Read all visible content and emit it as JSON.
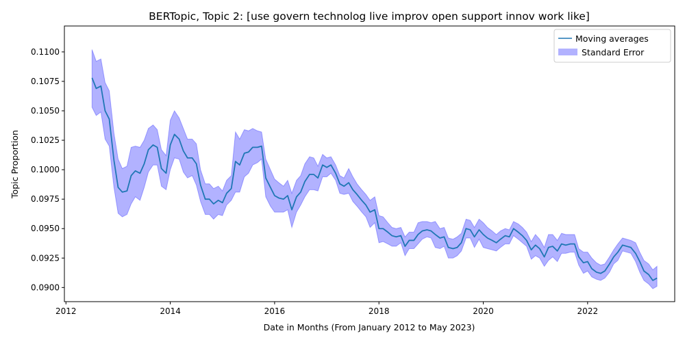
{
  "chart_data": {
    "type": "line",
    "title": "BERTopic, Topic 2: [use govern technolog live improv open support innov work like]",
    "xlabel": "Date in Months (From January 2012 to May 2023)",
    "ylabel": "Topic Proportion",
    "x_ticks": [
      "2012",
      "2014",
      "2016",
      "2018",
      "2020",
      "2022"
    ],
    "y_ticks": [
      "0.0900",
      "0.0925",
      "0.0950",
      "0.0975",
      "0.1000",
      "0.1025",
      "0.1050",
      "0.1075",
      "0.1100"
    ],
    "xlim": [
      2011.97,
      2023.67
    ],
    "ylim": [
      0.0888,
      0.1122
    ],
    "legend_position": "top-right",
    "colors": {
      "line": "#1f77b4",
      "band": "#0000ff"
    },
    "series": [
      {
        "name": "Moving averages",
        "x": [
          2012.5,
          2012.58,
          2012.67,
          2012.75,
          2012.83,
          2012.92,
          2013.0,
          2013.08,
          2013.17,
          2013.25,
          2013.33,
          2013.42,
          2013.5,
          2013.58,
          2013.67,
          2013.75,
          2013.83,
          2013.92,
          2014.0,
          2014.08,
          2014.17,
          2014.25,
          2014.33,
          2014.42,
          2014.5,
          2014.58,
          2014.67,
          2014.75,
          2014.83,
          2014.92,
          2015.0,
          2015.08,
          2015.17,
          2015.25,
          2015.33,
          2015.42,
          2015.5,
          2015.58,
          2015.67,
          2015.75,
          2015.83,
          2015.92,
          2016.0,
          2016.08,
          2016.17,
          2016.25,
          2016.33,
          2016.42,
          2016.5,
          2016.58,
          2016.67,
          2016.75,
          2016.83,
          2016.92,
          2017.0,
          2017.08,
          2017.17,
          2017.25,
          2017.33,
          2017.42,
          2017.5,
          2017.58,
          2017.67,
          2017.75,
          2017.83,
          2017.92,
          2018.0,
          2018.08,
          2018.17,
          2018.25,
          2018.33,
          2018.42,
          2018.5,
          2018.58,
          2018.67,
          2018.75,
          2018.83,
          2018.92,
          2019.0,
          2019.08,
          2019.17,
          2019.25,
          2019.33,
          2019.42,
          2019.5,
          2019.58,
          2019.67,
          2019.75,
          2019.83,
          2019.92,
          2020.0,
          2020.08,
          2020.17,
          2020.25,
          2020.33,
          2020.42,
          2020.5,
          2020.58,
          2020.67,
          2020.75,
          2020.83,
          2020.92,
          2021.0,
          2021.08,
          2021.17,
          2021.25,
          2021.33,
          2021.42,
          2021.5,
          2021.58,
          2021.67,
          2021.75,
          2021.83,
          2021.92,
          2022.0,
          2022.08,
          2022.17,
          2022.25,
          2022.33,
          2022.42,
          2022.5,
          2022.58,
          2022.67,
          2022.75,
          2022.83,
          2022.92,
          2023.0,
          2023.08,
          2023.17,
          2023.25,
          2023.33
        ],
        "values": [
          0.1078,
          0.1069,
          0.1071,
          0.105,
          0.1043,
          0.1008,
          0.0985,
          0.0981,
          0.0982,
          0.0995,
          0.0999,
          0.0997,
          0.1005,
          0.1017,
          0.1021,
          0.1019,
          0.1001,
          0.0997,
          0.1021,
          0.103,
          0.1026,
          0.1016,
          0.101,
          0.101,
          0.1005,
          0.0987,
          0.0975,
          0.0975,
          0.0971,
          0.0974,
          0.0972,
          0.098,
          0.0984,
          0.1007,
          0.1004,
          0.1014,
          0.1015,
          0.1019,
          0.1019,
          0.102,
          0.0993,
          0.0985,
          0.0978,
          0.0976,
          0.0975,
          0.0978,
          0.0966,
          0.0977,
          0.0981,
          0.099,
          0.0996,
          0.0996,
          0.0993,
          0.1004,
          0.1002,
          0.1004,
          0.0997,
          0.0988,
          0.0986,
          0.0989,
          0.0983,
          0.0979,
          0.0974,
          0.097,
          0.0964,
          0.0966,
          0.095,
          0.095,
          0.0947,
          0.0944,
          0.0943,
          0.0944,
          0.0935,
          0.094,
          0.094,
          0.0945,
          0.0948,
          0.0949,
          0.0948,
          0.0945,
          0.0942,
          0.0943,
          0.0934,
          0.0933,
          0.0934,
          0.0938,
          0.095,
          0.0949,
          0.0943,
          0.0949,
          0.0945,
          0.0942,
          0.094,
          0.0938,
          0.0941,
          0.0944,
          0.0943,
          0.095,
          0.0947,
          0.0944,
          0.094,
          0.0932,
          0.0936,
          0.0933,
          0.0926,
          0.0934,
          0.0935,
          0.0931,
          0.0937,
          0.0936,
          0.0937,
          0.0937,
          0.0926,
          0.0921,
          0.0922,
          0.0916,
          0.0913,
          0.0912,
          0.0914,
          0.092,
          0.0926,
          0.093,
          0.0936,
          0.0935,
          0.0934,
          0.0929,
          0.0922,
          0.0914,
          0.0911,
          0.0906,
          0.0908
        ]
      },
      {
        "name": "Standard Error",
        "x": [
          2012.5,
          2012.58,
          2012.67,
          2012.75,
          2012.83,
          2012.92,
          2013.0,
          2013.08,
          2013.17,
          2013.25,
          2013.33,
          2013.42,
          2013.5,
          2013.58,
          2013.67,
          2013.75,
          2013.83,
          2013.92,
          2014.0,
          2014.08,
          2014.17,
          2014.25,
          2014.33,
          2014.42,
          2014.5,
          2014.58,
          2014.67,
          2014.75,
          2014.83,
          2014.92,
          2015.0,
          2015.08,
          2015.17,
          2015.25,
          2015.33,
          2015.42,
          2015.5,
          2015.58,
          2015.67,
          2015.75,
          2015.83,
          2015.92,
          2016.0,
          2016.08,
          2016.17,
          2016.25,
          2016.33,
          2016.42,
          2016.5,
          2016.58,
          2016.67,
          2016.75,
          2016.83,
          2016.92,
          2017.0,
          2017.08,
          2017.17,
          2017.25,
          2017.33,
          2017.42,
          2017.5,
          2017.58,
          2017.67,
          2017.75,
          2017.83,
          2017.92,
          2018.0,
          2018.08,
          2018.17,
          2018.25,
          2018.33,
          2018.42,
          2018.5,
          2018.58,
          2018.67,
          2018.75,
          2018.83,
          2018.92,
          2019.0,
          2019.08,
          2019.17,
          2019.25,
          2019.33,
          2019.42,
          2019.5,
          2019.58,
          2019.67,
          2019.75,
          2019.83,
          2019.92,
          2020.0,
          2020.08,
          2020.17,
          2020.25,
          2020.33,
          2020.42,
          2020.5,
          2020.58,
          2020.67,
          2020.75,
          2020.83,
          2020.92,
          2021.0,
          2021.08,
          2021.17,
          2021.25,
          2021.33,
          2021.42,
          2021.5,
          2021.58,
          2021.67,
          2021.75,
          2021.83,
          2021.92,
          2022.0,
          2022.08,
          2022.17,
          2022.25,
          2022.33,
          2022.42,
          2022.5,
          2022.58,
          2022.67,
          2022.75,
          2022.83,
          2022.92,
          2023.0,
          2023.08,
          2023.17,
          2023.25,
          2023.33
        ],
        "upper": [
          0.1102,
          0.1092,
          0.1094,
          0.1074,
          0.1067,
          0.1031,
          0.1009,
          0.1001,
          0.1003,
          0.1019,
          0.102,
          0.1019,
          0.1025,
          0.1035,
          0.1038,
          0.1034,
          0.1017,
          0.1012,
          0.1042,
          0.105,
          0.1044,
          0.1035,
          0.1026,
          0.1026,
          0.1022,
          0.1,
          0.0988,
          0.0988,
          0.0984,
          0.0986,
          0.0982,
          0.0991,
          0.0995,
          0.1032,
          0.1026,
          0.1034,
          0.1033,
          0.1035,
          0.1033,
          0.1032,
          0.1009,
          0.1,
          0.0992,
          0.0989,
          0.0986,
          0.0991,
          0.098,
          0.0991,
          0.0995,
          0.1005,
          0.1011,
          0.101,
          0.1003,
          0.1013,
          0.101,
          0.1011,
          0.1004,
          0.0995,
          0.0993,
          0.1001,
          0.0994,
          0.0988,
          0.0983,
          0.0979,
          0.0974,
          0.0977,
          0.0961,
          0.096,
          0.0955,
          0.0951,
          0.095,
          0.0951,
          0.0943,
          0.0947,
          0.0947,
          0.0955,
          0.0956,
          0.0956,
          0.0955,
          0.0956,
          0.095,
          0.0951,
          0.0942,
          0.0941,
          0.0943,
          0.0946,
          0.0958,
          0.0957,
          0.0951,
          0.0958,
          0.0955,
          0.0951,
          0.0948,
          0.0945,
          0.0948,
          0.095,
          0.0949,
          0.0956,
          0.0954,
          0.0951,
          0.0947,
          0.0939,
          0.0945,
          0.0941,
          0.0934,
          0.0945,
          0.0945,
          0.094,
          0.0946,
          0.0945,
          0.0945,
          0.0945,
          0.0933,
          0.093,
          0.093,
          0.0925,
          0.0921,
          0.0919,
          0.092,
          0.0926,
          0.0932,
          0.0937,
          0.0942,
          0.0941,
          0.094,
          0.0938,
          0.093,
          0.0923,
          0.092,
          0.0915,
          0.0918
        ],
        "lower": [
          0.1053,
          0.1046,
          0.1049,
          0.1026,
          0.102,
          0.0985,
          0.0963,
          0.096,
          0.0962,
          0.0971,
          0.0977,
          0.0974,
          0.0985,
          0.0998,
          0.1004,
          0.1004,
          0.0986,
          0.0983,
          0.1,
          0.101,
          0.1009,
          0.0998,
          0.0993,
          0.0995,
          0.0987,
          0.0973,
          0.0962,
          0.0962,
          0.0958,
          0.0962,
          0.0961,
          0.097,
          0.0974,
          0.0981,
          0.0981,
          0.0994,
          0.0997,
          0.1004,
          0.1006,
          0.1009,
          0.0977,
          0.0969,
          0.0964,
          0.0964,
          0.0964,
          0.0966,
          0.0951,
          0.0964,
          0.097,
          0.0977,
          0.0983,
          0.0983,
          0.0982,
          0.0994,
          0.0994,
          0.0997,
          0.0991,
          0.098,
          0.0979,
          0.098,
          0.0973,
          0.0969,
          0.0964,
          0.096,
          0.0951,
          0.0955,
          0.0938,
          0.0939,
          0.0937,
          0.0935,
          0.0935,
          0.0938,
          0.0927,
          0.0933,
          0.0933,
          0.0937,
          0.0941,
          0.0943,
          0.0942,
          0.0934,
          0.0933,
          0.0935,
          0.0925,
          0.0925,
          0.0927,
          0.0931,
          0.0942,
          0.0942,
          0.0934,
          0.0941,
          0.0934,
          0.0933,
          0.0932,
          0.0931,
          0.0934,
          0.0937,
          0.0937,
          0.0944,
          0.0941,
          0.0938,
          0.0935,
          0.0924,
          0.0927,
          0.0925,
          0.0918,
          0.0923,
          0.0926,
          0.0922,
          0.0929,
          0.0929,
          0.093,
          0.093,
          0.0919,
          0.0912,
          0.0914,
          0.0909,
          0.0907,
          0.0906,
          0.0908,
          0.0913,
          0.092,
          0.0923,
          0.0931,
          0.093,
          0.0929,
          0.0922,
          0.0913,
          0.0906,
          0.0903,
          0.0899,
          0.0901
        ]
      }
    ]
  }
}
